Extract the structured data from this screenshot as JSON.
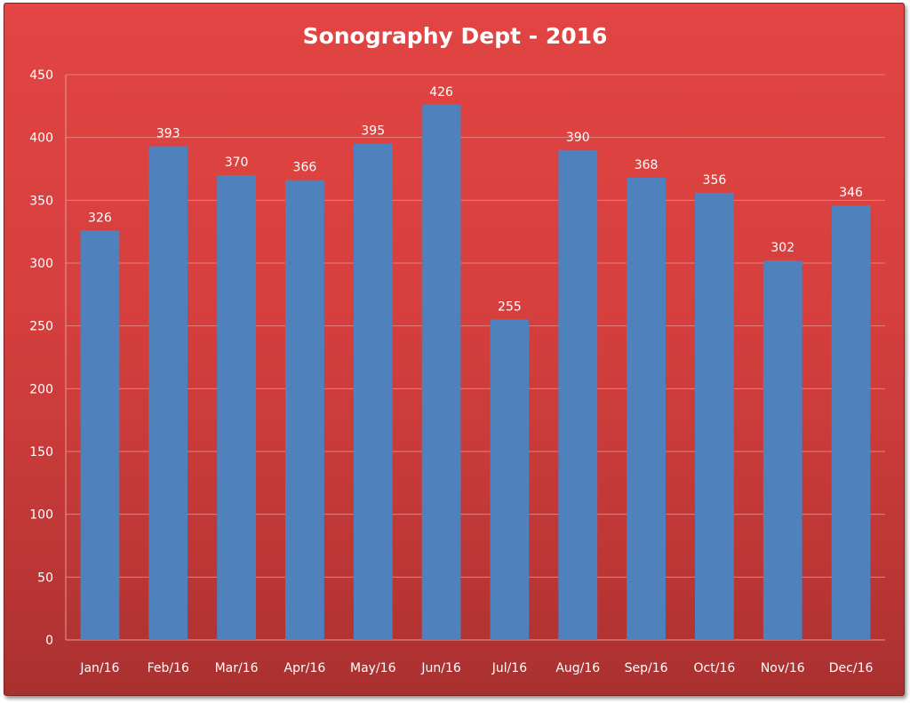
{
  "chart_data": {
    "type": "bar",
    "title": "Sonography Dept - 2016",
    "xlabel": "",
    "ylabel": "",
    "categories": [
      "Jan/16",
      "Feb/16",
      "Mar/16",
      "Apr/16",
      "May/16",
      "Jun/16",
      "Jul/16",
      "Aug/16",
      "Sep/16",
      "Oct/16",
      "Nov/16",
      "Dec/16"
    ],
    "values": [
      326,
      393,
      370,
      366,
      395,
      426,
      255,
      390,
      368,
      356,
      302,
      346
    ],
    "ylim": [
      0,
      450
    ],
    "yticks": [
      0,
      50,
      100,
      150,
      200,
      250,
      300,
      350,
      400,
      450
    ],
    "grid": true,
    "legend": "none",
    "data_labels": true,
    "colors": {
      "bar": "#4f81bd",
      "background": "#d53f3e",
      "text": "#ffffff"
    }
  }
}
